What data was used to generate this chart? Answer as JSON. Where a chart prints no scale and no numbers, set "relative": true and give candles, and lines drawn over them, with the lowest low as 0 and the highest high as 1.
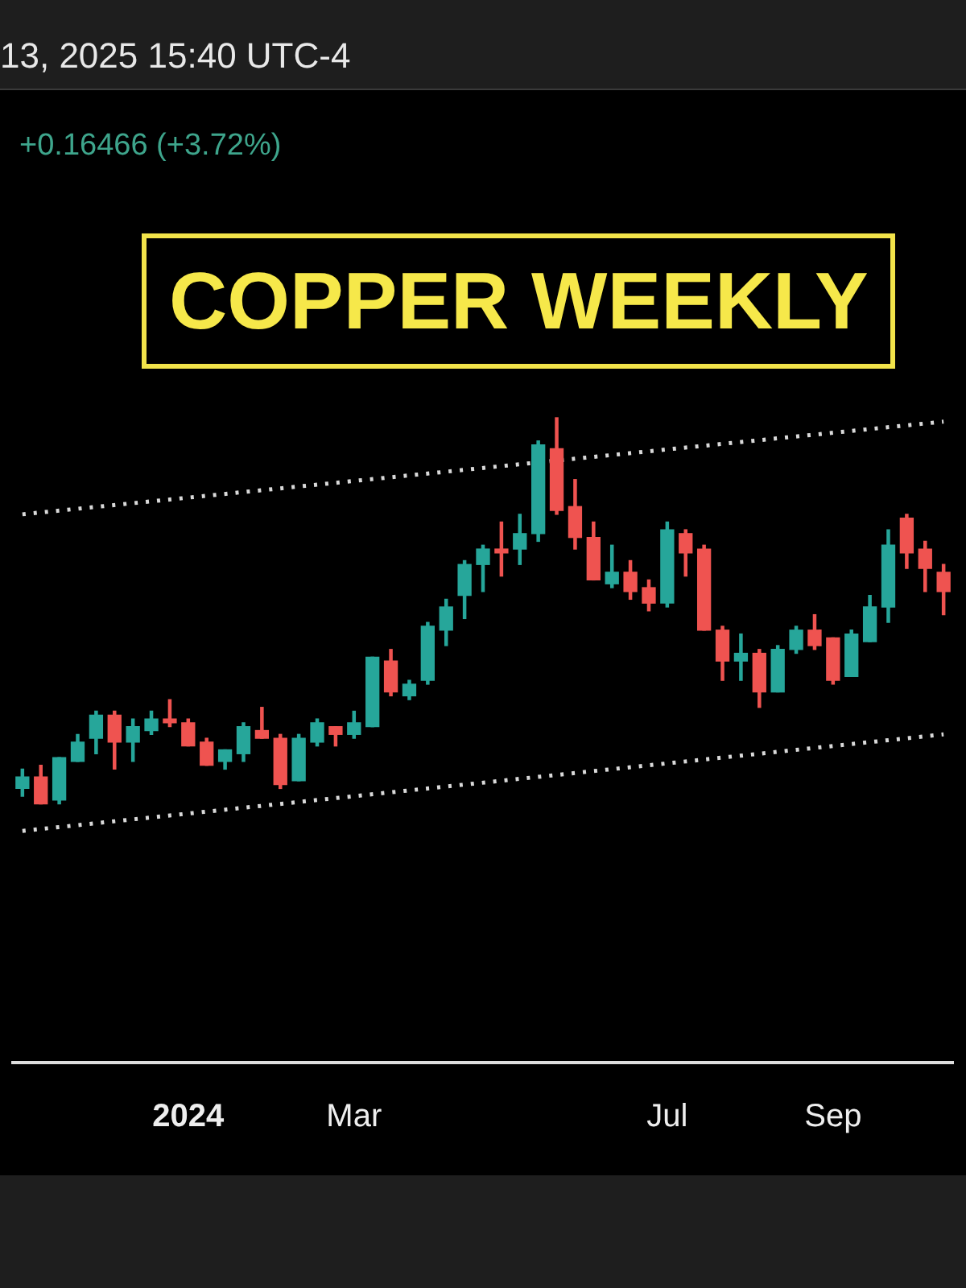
{
  "chart_data": {
    "type": "candlestick",
    "title": "COPPER WEEKLY",
    "subtitle": "+0.16466 (+3.72%)",
    "annotations": [
      "13, 2025 15:40 UTC-4"
    ],
    "relative": true,
    "tick_labels": "x",
    "grid": false,
    "legend": false,
    "categories": [
      null,
      null,
      null,
      null,
      null,
      null,
      null,
      null,
      null,
      "2024",
      null,
      null,
      null,
      null,
      null,
      null,
      null,
      null,
      "Mar",
      null,
      null,
      null,
      null,
      null,
      null,
      null,
      null,
      null,
      null,
      null,
      null,
      null,
      null,
      null,
      null,
      "Jul",
      null,
      null,
      null,
      null,
      null,
      null,
      null,
      null,
      "Sep",
      null,
      null,
      null,
      null,
      null,
      null
    ],
    "ohlc": [
      [
        0.04,
        0.09,
        0.02,
        0.07
      ],
      [
        0.07,
        0.1,
        0,
        0.0
      ],
      [
        0.01,
        0.12,
        0.0,
        0.12
      ],
      [
        0.11,
        0.18,
        0.11,
        0.16
      ],
      [
        0.17,
        0.24,
        0.13,
        0.23
      ],
      [
        0.23,
        0.24,
        0.09,
        0.16
      ],
      [
        0.16,
        0.22,
        0.11,
        0.2
      ],
      [
        0.19,
        0.24,
        0.18,
        0.22
      ],
      [
        0.22,
        0.27,
        0.2,
        0.21
      ],
      [
        0.21,
        0.22,
        0.15,
        0.15
      ],
      [
        0.16,
        0.17,
        0.1,
        0.1
      ],
      [
        0.11,
        0.14,
        0.09,
        0.14
      ],
      [
        0.13,
        0.21,
        0.11,
        0.2
      ],
      [
        0.19,
        0.25,
        0.17,
        0.17
      ],
      [
        0.17,
        0.18,
        0.04,
        0.05
      ],
      [
        0.06,
        0.18,
        0.06,
        0.17
      ],
      [
        0.16,
        0.22,
        0.15,
        0.21
      ],
      [
        0.2,
        0.2,
        0.15,
        0.18
      ],
      [
        0.18,
        0.24,
        0.17,
        0.21
      ],
      [
        0.2,
        0.38,
        0.2,
        0.38
      ],
      [
        0.37,
        0.4,
        0.28,
        0.29
      ],
      [
        0.28,
        0.32,
        0.27,
        0.31
      ],
      [
        0.32,
        0.47,
        0.31,
        0.46
      ],
      [
        0.45,
        0.53,
        0.41,
        0.51
      ],
      [
        0.54,
        0.63,
        0.48,
        0.62
      ],
      [
        0.62,
        0.67,
        0.55,
        0.66
      ],
      [
        0.66,
        0.73,
        0.59,
        0.65
      ],
      [
        0.66,
        0.75,
        0.62,
        0.7
      ],
      [
        0.7,
        0.94,
        0.68,
        0.93
      ],
      [
        0.92,
        1,
        0.75,
        0.76
      ],
      [
        0.77,
        0.84,
        0.66,
        0.69
      ],
      [
        0.69,
        0.73,
        0.58,
        0.58
      ],
      [
        0.57,
        0.67,
        0.56,
        0.6
      ],
      [
        0.6,
        0.63,
        0.53,
        0.55
      ],
      [
        0.56,
        0.58,
        0.5,
        0.52
      ],
      [
        0.52,
        0.73,
        0.51,
        0.71
      ],
      [
        0.7,
        0.71,
        0.59,
        0.65
      ],
      [
        0.66,
        0.67,
        0.45,
        0.45
      ],
      [
        0.45,
        0.46,
        0.32,
        0.37
      ],
      [
        0.37,
        0.44,
        0.32,
        0.39
      ],
      [
        0.39,
        0.4,
        0.25,
        0.29
      ],
      [
        0.29,
        0.41,
        0.29,
        0.4
      ],
      [
        0.4,
        0.46,
        0.39,
        0.45
      ],
      [
        0.45,
        0.49,
        0.4,
        0.41
      ],
      [
        0.43,
        0.43,
        0.31,
        0.32
      ],
      [
        0.33,
        0.45,
        0.33,
        0.44
      ],
      [
        0.42,
        0.54,
        0.42,
        0.51
      ],
      [
        0.51,
        0.71,
        0.47,
        0.67
      ],
      [
        0.74,
        0.75,
        0.61,
        0.65
      ],
      [
        0.66,
        0.68,
        0.55,
        0.61
      ],
      [
        0.6,
        0.62,
        0.49,
        0.55
      ]
    ],
    "colors": [
      "#26a69a",
      "#ef5350",
      "#26a69a",
      "#26a69a",
      "#26a69a",
      "#ef5350",
      "#26a69a",
      "#26a69a",
      "#ef5350",
      "#ef5350",
      "#ef5350",
      "#26a69a",
      "#26a69a",
      "#ef5350",
      "#ef5350",
      "#26a69a",
      "#26a69a",
      "#ef5350",
      "#26a69a",
      "#26a69a",
      "#ef5350",
      "#26a69a",
      "#26a69a",
      "#26a69a",
      "#26a69a",
      "#26a69a",
      "#ef5350",
      "#26a69a",
      "#26a69a",
      "#ef5350",
      "#ef5350",
      "#ef5350",
      "#26a69a",
      "#ef5350",
      "#ef5350",
      "#26a69a",
      "#ef5350",
      "#ef5350",
      "#ef5350",
      "#26a69a",
      "#ef5350",
      "#26a69a",
      "#26a69a",
      "#ef5350",
      "#ef5350",
      "#26a69a",
      "#26a69a",
      "#26a69a",
      "#ef5350",
      "#ef5350",
      "#ef5350"
    ],
    "series": [
      {
        "type": "line",
        "color": "#d9d9d9",
        "line_style": "dotted",
        "values": [
          0.75,
          null,
          null,
          null,
          null,
          null,
          null,
          null,
          null,
          null,
          null,
          null,
          null,
          null,
          null,
          null,
          null,
          null,
          null,
          null,
          null,
          null,
          null,
          null,
          null,
          null,
          null,
          null,
          null,
          null,
          null,
          null,
          null,
          null,
          null,
          null,
          null,
          null,
          null,
          null,
          null,
          null,
          null,
          null,
          null,
          null,
          null,
          null,
          null,
          null,
          0.99
        ]
      },
      {
        "type": "line",
        "color": "#d9d9d9",
        "line_style": "dotted",
        "values": [
          -0.07,
          null,
          null,
          null,
          null,
          null,
          null,
          null,
          null,
          null,
          null,
          null,
          null,
          null,
          null,
          null,
          null,
          null,
          null,
          null,
          null,
          null,
          null,
          null,
          null,
          null,
          null,
          null,
          null,
          null,
          null,
          null,
          null,
          null,
          null,
          null,
          null,
          null,
          null,
          null,
          null,
          null,
          null,
          null,
          null,
          null,
          null,
          null,
          null,
          null,
          0.18
        ]
      }
    ]
  }
}
